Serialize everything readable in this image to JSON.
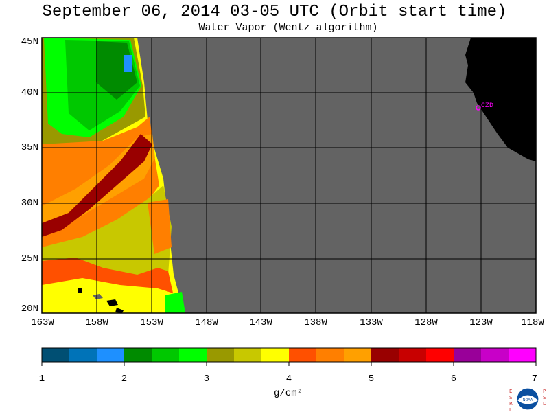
{
  "header": {
    "title": "September 06, 2014  03-05 UTC  (Orbit start time)",
    "subtitle": "Water Vapor (Wentz algorithm)"
  },
  "map": {
    "lat_labels": [
      "45N",
      "40N",
      "35N",
      "30N",
      "25N",
      "20N"
    ],
    "lon_labels": [
      "163W",
      "158W",
      "153W",
      "148W",
      "143W",
      "138W",
      "133W",
      "128W",
      "123W",
      "118W"
    ],
    "station_label": "CZD",
    "colors": {
      "no_data": "#636363",
      "land": "#000000",
      "grid": "#000000",
      "station": "#ff00ff"
    }
  },
  "colorbar": {
    "tick_labels": [
      "1",
      "2",
      "3",
      "4",
      "5",
      "6",
      "7"
    ],
    "units": "g/cm²",
    "colors": [
      "#004f73",
      "#0073b8",
      "#1e90ff",
      "#008b00",
      "#00c800",
      "#00ff00",
      "#999900",
      "#c8c800",
      "#ffff00",
      "#ff5000",
      "#ff7f00",
      "#ffa000",
      "#990000",
      "#c80000",
      "#ff0000",
      "#990099",
      "#c800c8",
      "#ff00ff"
    ]
  },
  "logo": {
    "left_text": "ESRL",
    "right_text": "PSD",
    "center_text": "NOAA"
  }
}
